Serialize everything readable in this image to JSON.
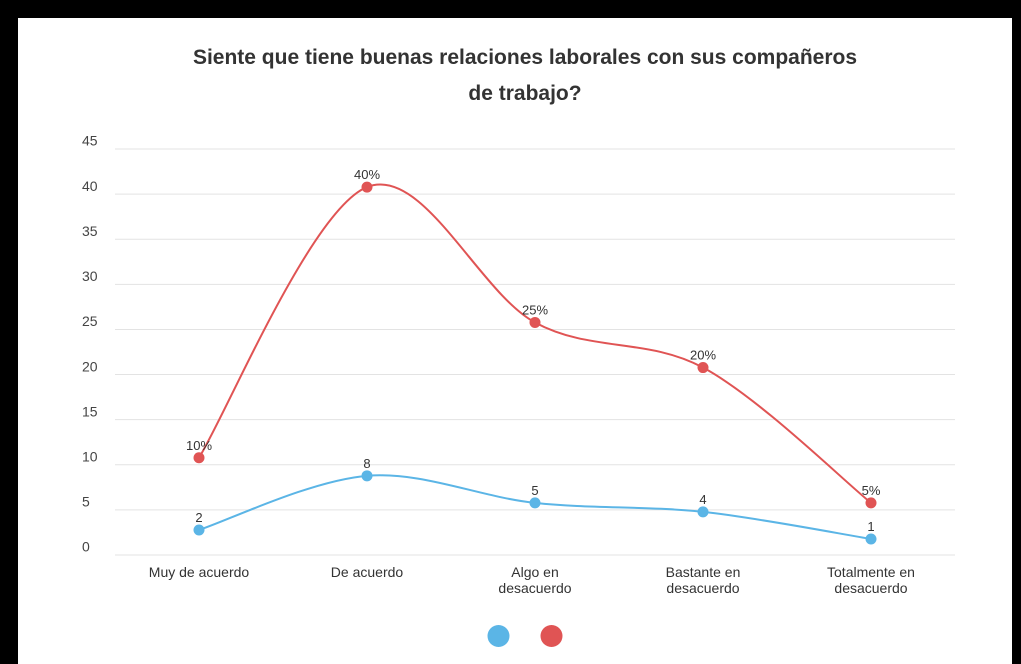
{
  "chart_data": {
    "type": "line",
    "title": [
      "Siente que tiene buenas relaciones laborales con sus compañeros",
      "de trabajo?"
    ],
    "categories": [
      "Muy de acuerdo",
      "De acuerdo",
      "Algo en desacuerdo",
      "Bastante en desacuerdo",
      "Totalmente en desacuerdo"
    ],
    "series": [
      {
        "color": "#5bb5e6",
        "values": [
          2,
          8,
          5,
          4,
          1
        ]
      },
      {
        "color": "#e05454",
        "values": [
          10,
          40,
          25,
          20,
          5
        ],
        "value_labels": [
          "10%",
          "40%",
          "25%",
          "20%",
          "5%"
        ]
      }
    ],
    "ylim": [
      0,
      45
    ],
    "yticks": [
      0,
      5,
      10,
      15,
      20,
      25,
      30,
      35,
      40,
      45
    ],
    "grid": true,
    "smooth": true
  }
}
